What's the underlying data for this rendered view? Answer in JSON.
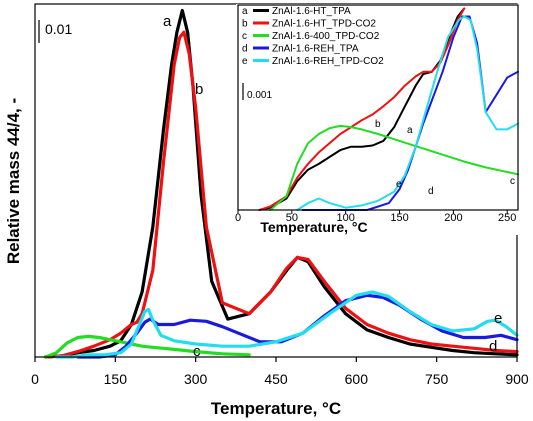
{
  "chart_data": [
    {
      "type": "line",
      "xlabel": "Temperature, °C",
      "ylabel": "Relative mass 44/4, -",
      "xlim": [
        0,
        900
      ],
      "xticks": [
        "0",
        "150",
        "300",
        "450",
        "600",
        "750",
        "900"
      ],
      "scale_bar_label": "0.01",
      "curve_labels": [
        "a",
        "b",
        "c",
        "d",
        "e"
      ],
      "series": [
        {
          "name": "ZnAl-1.6-HT_TPA",
          "label": "a",
          "color": "#000000",
          "x": [
            20,
            50,
            80,
            110,
            140,
            160,
            180,
            200,
            220,
            240,
            255,
            265,
            275,
            285,
            295,
            310,
            330,
            360,
            400,
            440,
            470,
            490,
            510,
            540,
            580,
            620,
            660,
            700,
            740,
            780,
            820,
            860,
            900
          ],
          "y": [
            0.0,
            0.001,
            0.004,
            0.006,
            0.01,
            0.015,
            0.03,
            0.06,
            0.12,
            0.21,
            0.27,
            0.3,
            0.32,
            0.3,
            0.25,
            0.15,
            0.07,
            0.035,
            0.04,
            0.06,
            0.08,
            0.092,
            0.088,
            0.065,
            0.04,
            0.025,
            0.018,
            0.012,
            0.009,
            0.006,
            0.004,
            0.003,
            0.002
          ]
        },
        {
          "name": "ZnAl-1.6-HT_TPD-CO2",
          "label": "b",
          "color": "#ee1111",
          "x": [
            20,
            50,
            80,
            110,
            140,
            160,
            170,
            180,
            190,
            200,
            220,
            240,
            260,
            270,
            278,
            288,
            300,
            320,
            350,
            400,
            440,
            470,
            490,
            510,
            540,
            580,
            620,
            660,
            700,
            740,
            780,
            820,
            860,
            900
          ],
          "y": [
            0.0,
            0.001,
            0.005,
            0.01,
            0.016,
            0.022,
            0.026,
            0.03,
            0.032,
            0.04,
            0.08,
            0.18,
            0.27,
            0.295,
            0.3,
            0.28,
            0.23,
            0.12,
            0.05,
            0.04,
            0.06,
            0.082,
            0.092,
            0.09,
            0.07,
            0.045,
            0.03,
            0.022,
            0.016,
            0.012,
            0.01,
            0.008,
            0.006,
            0.005
          ]
        },
        {
          "name": "ZnAl-1.6-400_TPD-CO2",
          "label": "c",
          "color": "#22dd22",
          "x": [
            20,
            40,
            60,
            80,
            100,
            120,
            140,
            160,
            180,
            200,
            220,
            240,
            260,
            300,
            350,
            400
          ],
          "y": [
            0.0,
            0.004,
            0.013,
            0.018,
            0.019,
            0.018,
            0.016,
            0.014,
            0.012,
            0.01,
            0.009,
            0.008,
            0.007,
            0.005,
            0.003,
            0.002
          ]
        },
        {
          "name": "ZnAl-1.6-REH_TPA",
          "label": "d",
          "color": "#1a1adf",
          "x": [
            80,
            120,
            150,
            170,
            190,
            205,
            215,
            230,
            260,
            290,
            320,
            350,
            380,
            420,
            460,
            500,
            540,
            580,
            620,
            650,
            680,
            720,
            760,
            800,
            840,
            870,
            900
          ],
          "y": [
            0.0,
            0.0,
            0.002,
            0.01,
            0.022,
            0.032,
            0.035,
            0.03,
            0.03,
            0.034,
            0.033,
            0.028,
            0.022,
            0.014,
            0.014,
            0.022,
            0.038,
            0.052,
            0.057,
            0.055,
            0.048,
            0.035,
            0.024,
            0.018,
            0.018,
            0.02,
            0.016
          ]
        },
        {
          "name": "ZnAl-1.6-REH_TPD-CO2",
          "label": "e",
          "color": "#22ddee",
          "x": [
            40,
            70,
            100,
            130,
            160,
            180,
            195,
            205,
            212,
            220,
            235,
            260,
            300,
            350,
            400,
            450,
            500,
            550,
            600,
            630,
            660,
            700,
            740,
            780,
            820,
            845,
            860,
            880,
            900
          ],
          "y": [
            0.0,
            0.0,
            0.002,
            0.002,
            0.004,
            0.012,
            0.03,
            0.042,
            0.044,
            0.034,
            0.02,
            0.015,
            0.012,
            0.01,
            0.01,
            0.014,
            0.022,
            0.04,
            0.057,
            0.06,
            0.056,
            0.042,
            0.03,
            0.024,
            0.026,
            0.033,
            0.034,
            0.028,
            0.02
          ]
        }
      ]
    },
    {
      "type": "line",
      "xlabel": "Temperature, °C",
      "xlim": [
        0,
        260
      ],
      "xticks": [
        "0",
        "50",
        "100",
        "150",
        "200",
        "250"
      ],
      "scale_bar_label": "0.001",
      "legend_position": "top-left",
      "series": [
        {
          "name": "ZnAl-1.6-HT_TPA",
          "label": "a",
          "color": "#000000",
          "x": [
            20,
            30,
            45,
            55,
            65,
            75,
            85,
            95,
            105,
            115,
            125,
            135,
            145,
            155,
            165,
            172,
            180,
            188,
            196,
            204,
            210
          ],
          "y": [
            0.0,
            0.0002,
            0.001,
            0.0025,
            0.0035,
            0.004,
            0.0046,
            0.0052,
            0.0055,
            0.0055,
            0.0056,
            0.006,
            0.0072,
            0.009,
            0.0108,
            0.0118,
            0.012,
            0.013,
            0.015,
            0.0168,
            0.0175
          ]
        },
        {
          "name": "ZnAl-1.6-HT_TPD-CO2",
          "label": "b",
          "color": "#ee1111",
          "x": [
            20,
            30,
            45,
            55,
            65,
            75,
            85,
            95,
            105,
            115,
            125,
            135,
            145,
            155,
            165,
            172,
            180,
            188,
            196,
            204,
            210
          ],
          "y": [
            0.0,
            0.0003,
            0.0012,
            0.0028,
            0.004,
            0.005,
            0.0058,
            0.0066,
            0.0072,
            0.0078,
            0.0083,
            0.009,
            0.0098,
            0.0108,
            0.0116,
            0.012,
            0.012,
            0.0128,
            0.0145,
            0.0165,
            0.0175
          ]
        },
        {
          "name": "ZnAl-1.6-400_TPD-CO2",
          "label": "c",
          "color": "#22dd22",
          "x": [
            30,
            45,
            55,
            65,
            75,
            85,
            95,
            105,
            115,
            130,
            150,
            170,
            190,
            210,
            230,
            260
          ],
          "y": [
            0.0,
            0.0012,
            0.004,
            0.0058,
            0.0066,
            0.0071,
            0.0073,
            0.0072,
            0.007,
            0.0066,
            0.006,
            0.0054,
            0.0048,
            0.0042,
            0.0037,
            0.0031
          ]
        },
        {
          "name": "ZnAl-1.6-REH_TPA",
          "label": "d",
          "color": "#1a1adf",
          "x": [
            60,
            90,
            120,
            140,
            150,
            158,
            165,
            172,
            180,
            190,
            200,
            208,
            215,
            222,
            230,
            240,
            250,
            260
          ],
          "y": [
            0.0,
            0.0,
            0.0,
            0.0006,
            0.0018,
            0.0035,
            0.0055,
            0.0075,
            0.0095,
            0.012,
            0.015,
            0.0168,
            0.0168,
            0.0145,
            0.0085,
            0.01,
            0.0115,
            0.012
          ]
        },
        {
          "name": "ZnAl-1.6-REH_TPD-CO2",
          "label": "e",
          "color": "#22ddee",
          "x": [
            55,
            65,
            75,
            85,
            100,
            115,
            130,
            145,
            155,
            165,
            175,
            185,
            195,
            205,
            210,
            216,
            222,
            230,
            240,
            250,
            260
          ],
          "y": [
            0.0,
            0.0006,
            0.001,
            0.0006,
            0.0002,
            0.0004,
            0.0008,
            0.0016,
            0.003,
            0.0055,
            0.0088,
            0.012,
            0.015,
            0.0165,
            0.0168,
            0.0165,
            0.014,
            0.0085,
            0.007,
            0.007,
            0.0075
          ]
        }
      ]
    }
  ]
}
